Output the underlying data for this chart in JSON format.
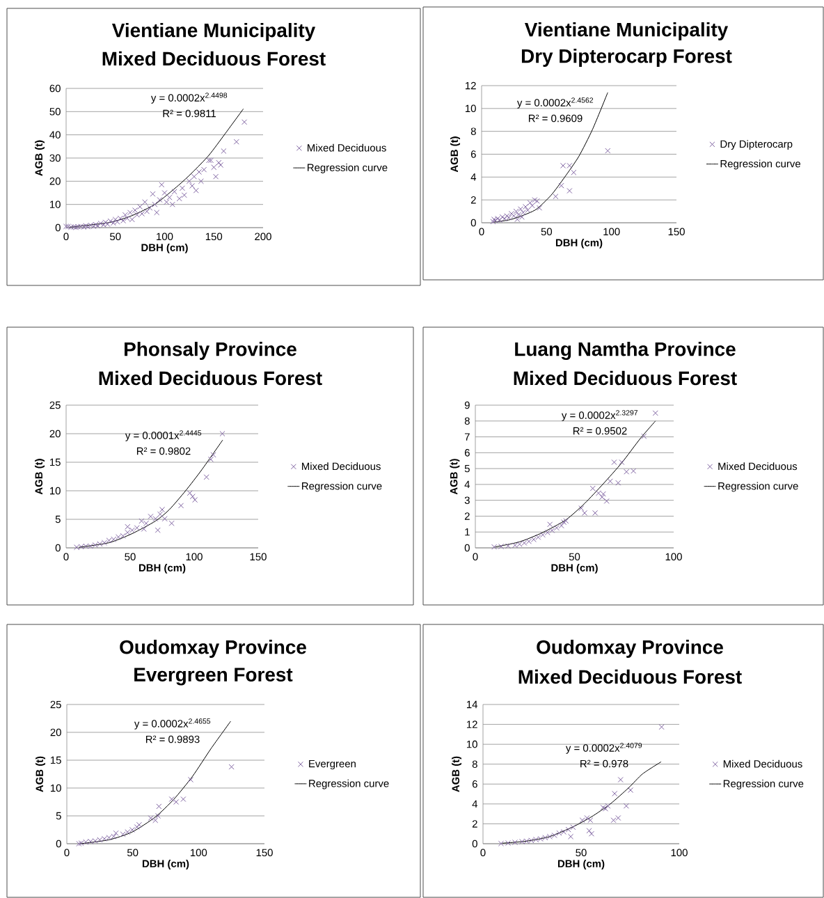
{
  "chart_data": [
    {
      "type": "scatter",
      "title": "Vientiane Municipality",
      "subtitle": "Mixed Deciduous Forest",
      "xlabel": "DBH (cm)",
      "ylabel": "AGB (t)",
      "xlim": [
        0,
        200
      ],
      "ylim": [
        0,
        60
      ],
      "xticks": [
        0,
        50,
        100,
        150,
        200
      ],
      "yticks": [
        0,
        10,
        20,
        30,
        40,
        50,
        60
      ],
      "grid": "y",
      "legend": "right",
      "annotations": [
        "y = 0.0002x$^{2.4498}$",
        "R² = 0.9811"
      ],
      "series": [
        {
          "name": "Mixed Deciduous",
          "type": "scatter",
          "marker": "cross",
          "color": "#8064a2",
          "x": [
            0,
            2,
            5,
            8,
            10,
            12,
            15,
            18,
            20,
            22,
            25,
            28,
            30,
            32,
            35,
            38,
            40,
            42,
            45,
            48,
            50,
            52,
            55,
            58,
            60,
            62,
            65,
            67,
            70,
            72,
            75,
            77,
            80,
            82,
            85,
            88,
            90,
            92,
            95,
            97,
            100,
            102,
            105,
            108,
            110,
            115,
            118,
            120,
            125,
            128,
            130,
            132,
            135,
            137,
            140,
            145,
            147,
            150,
            152,
            155,
            157,
            160,
            173,
            181
          ],
          "values": [
            0.5,
            0.5,
            0.2,
            0.3,
            0.1,
            0.4,
            0.5,
            0.3,
            0.8,
            0.4,
            1,
            0.6,
            1.3,
            0.8,
            1.8,
            1.2,
            2.3,
            1.5,
            2.8,
            2,
            3.5,
            2.5,
            4,
            3,
            5.5,
            4,
            6.5,
            3.5,
            7.5,
            5.5,
            9,
            6,
            11,
            7,
            8.5,
            14.5,
            10,
            6.5,
            12,
            18.5,
            15,
            11,
            13,
            10,
            15.5,
            12.5,
            17,
            14,
            20,
            18,
            22,
            16,
            24,
            20,
            25,
            29,
            29,
            26,
            22,
            28,
            27,
            33,
            37,
            45.5
          ]
        },
        {
          "name": "Regression curve",
          "type": "line",
          "marker": "none",
          "line_style": "solid",
          "color": "#000000",
          "x": [
            3.5,
            43.6,
            67,
            90.7,
            114,
            128,
            145,
            161,
            180
          ],
          "values": [
            0.2,
            2.2,
            5.2,
            10.2,
            18.2,
            23.7,
            31.2,
            40.2,
            51.2
          ]
        }
      ]
    },
    {
      "type": "scatter",
      "title": "Vientiane Municipality",
      "subtitle": "Dry Dipterocarp Forest",
      "xlabel": "DBH (cm)",
      "ylabel": "AGB (t)",
      "xlim": [
        0,
        150
      ],
      "ylim": [
        0,
        12
      ],
      "xticks": [
        0,
        50,
        100,
        150
      ],
      "yticks": [
        0,
        2,
        4,
        6,
        8,
        10,
        12
      ],
      "grid": "y",
      "legend": "right",
      "annotations": [
        "y = 0.0002x$^{2.4562}$",
        "R² = 0.9609"
      ],
      "series": [
        {
          "name": "Dry Dipterocarp",
          "type": "scatter",
          "marker": "cross",
          "color": "#8064a2",
          "x": [
            8.8,
            9.6,
            10.5,
            12.3,
            14,
            16,
            17.7,
            19.5,
            21,
            23,
            24.8,
            26.6,
            27.5,
            28.4,
            30,
            31,
            32,
            33.8,
            35.5,
            37.3,
            39,
            40.9,
            42.7,
            44.5,
            57,
            61.4,
            62.7,
            67.7,
            67.7,
            70.9,
            97.1
          ],
          "values": [
            0.1,
            0.3,
            0.2,
            0.35,
            0.25,
            0.5,
            0.35,
            0.6,
            0.45,
            0.8,
            0.6,
            1.0,
            0.3,
            0.7,
            1.2,
            0.5,
            0.9,
            1.4,
            1.1,
            1.75,
            1.5,
            2.0,
            1.9,
            1.3,
            2.3,
            3.25,
            5.0,
            5.0,
            2.8,
            4.4,
            6.3
          ]
        },
        {
          "name": "Regression curve",
          "type": "line",
          "marker": "none",
          "line_style": "solid",
          "color": "#000000",
          "x": [
            9.6,
            23,
            41,
            53.4,
            64,
            74.8,
            85.5,
            97.1
          ],
          "values": [
            0.06,
            0.3,
            1.1,
            2.4,
            4,
            5.8,
            8.2,
            11.4
          ]
        }
      ]
    },
    {
      "type": "scatter",
      "title": "Phonsaly Province",
      "subtitle": "Mixed Deciduous Forest",
      "xlabel": "DBH (cm)",
      "ylabel": "AGB (t)",
      "xlim": [
        0,
        150
      ],
      "ylim": [
        0,
        25
      ],
      "xticks": [
        0,
        50,
        100,
        150
      ],
      "yticks": [
        0,
        5,
        10,
        15,
        20,
        25
      ],
      "grid": "y",
      "legend": "right",
      "annotations": [
        "y = 0.0001x$^{2.4445}$",
        "R² = 0.9802"
      ],
      "series": [
        {
          "name": "Mixed Deciduous",
          "type": "scatter",
          "marker": "cross",
          "color": "#8064a2",
          "x": [
            8.2,
            11.8,
            15.4,
            19,
            22.7,
            26.3,
            29.9,
            33.5,
            37.1,
            40.8,
            44.4,
            48,
            48,
            51.6,
            55.3,
            58.9,
            60.7,
            62.5,
            66,
            69.8,
            71.6,
            73.4,
            75,
            77,
            82.4,
            89.7,
            96.6,
            98.8,
            100.6,
            109.6,
            113,
            115,
            122
          ],
          "values": [
            0.1,
            0.2,
            0.3,
            0.3,
            0.5,
            0.7,
            0.9,
            1.3,
            1.5,
            1.9,
            2.1,
            2.7,
            3.7,
            3.1,
            3.5,
            4.7,
            3.3,
            4.3,
            5.5,
            5.1,
            3.1,
            5.9,
            6.7,
            5.1,
            4.3,
            7.4,
            9.6,
            9,
            8.4,
            12.4,
            15.5,
            16.3,
            20
          ]
        },
        {
          "name": "Regression curve",
          "type": "line",
          "marker": "none",
          "line_style": "solid",
          "color": "#000000",
          "x": [
            10,
            33.5,
            51.6,
            69.8,
            80.6,
            93.3,
            106,
            122.3
          ],
          "values": [
            0.1,
            0.9,
            2.5,
            4.7,
            6.7,
            10,
            13.7,
            18.9
          ]
        }
      ]
    },
    {
      "type": "scatter",
      "title": "Luang Namtha Province",
      "subtitle": "Mixed Deciduous Forest",
      "xlabel": "DBH (cm)",
      "ylabel": "AGB (t)",
      "xlim": [
        0,
        100
      ],
      "ylim": [
        0,
        9
      ],
      "xticks": [
        0,
        50,
        100
      ],
      "yticks": [
        0,
        1,
        2,
        3,
        4,
        5,
        6,
        7,
        8,
        9
      ],
      "grid": "y",
      "legend": "right",
      "annotations": [
        "y = 0.0002x$^{2.3297}$",
        "R² = 0.9502"
      ],
      "series": [
        {
          "name": "Mixed Deciduous",
          "type": "scatter",
          "marker": "cross",
          "color": "#8064a2",
          "x": [
            9.5,
            13,
            16.5,
            20,
            22.3,
            24.7,
            27,
            29.4,
            31.7,
            34,
            36.4,
            37.6,
            38.7,
            41,
            43.4,
            44.6,
            45.7,
            53.4,
            55.1,
            59.2,
            60.4,
            62.1,
            63.9,
            64.5,
            66.2,
            68,
            70,
            72,
            73.8,
            76.2,
            79.7,
            85,
            90.8
          ],
          "values": [
            0.06,
            0.09,
            0.12,
            0.16,
            0.23,
            0.31,
            0.41,
            0.53,
            0.67,
            0.82,
            0.97,
            1.48,
            1.1,
            1.26,
            1.4,
            1.62,
            1.7,
            2.5,
            2.2,
            3.75,
            2.2,
            3.45,
            3.2,
            3.4,
            2.95,
            4.2,
            5.4,
            4.1,
            5.4,
            4.8,
            4.85,
            7.04,
            8.5
          ]
        },
        {
          "name": "Regression curve",
          "type": "line",
          "marker": "none",
          "line_style": "solid",
          "color": "#000000",
          "x": [
            10,
            22.3,
            34,
            45.7,
            55.1,
            64.5,
            73.8,
            83.2,
            90.8
          ],
          "values": [
            0.06,
            0.38,
            0.97,
            1.77,
            2.8,
            4.04,
            5.36,
            6.9,
            8.0
          ]
        }
      ]
    },
    {
      "type": "scatter",
      "title": "Oudomxay Province",
      "subtitle": "Evergreen Forest",
      "xlabel": "DBH (cm)",
      "ylabel": "AGB (t)",
      "xlim": [
        0,
        150
      ],
      "ylim": [
        0,
        25
      ],
      "xticks": [
        0,
        50,
        100,
        150
      ],
      "yticks": [
        0,
        5,
        10,
        15,
        20,
        25
      ],
      "grid": "y",
      "legend": "right",
      "annotations": [
        "y = 0.0002x$^{2.4655}$",
        "R² = 0.9893"
      ],
      "series": [
        {
          "name": "Evergreen",
          "type": "scatter",
          "marker": "cross",
          "color": "#8064a2",
          "x": [
            9.2,
            10.9,
            14.4,
            18,
            21.5,
            25,
            28.5,
            32,
            35.6,
            37.3,
            42.6,
            46.1,
            49.6,
            53.2,
            54.9,
            63.7,
            67.2,
            69.2,
            69.9,
            79.6,
            83,
            88.4,
            94,
            125
          ],
          "values": [
            0,
            0.1,
            0.3,
            0.4,
            0.5,
            0.7,
            0.9,
            1.1,
            1.3,
            1.9,
            1.7,
            2.1,
            2.5,
            3.0,
            3.4,
            4.6,
            4.2,
            5.0,
            6.7,
            8.0,
            7.5,
            8.0,
            11.5,
            13.8
          ]
        },
        {
          "name": "Regression curve",
          "type": "line",
          "marker": "none",
          "line_style": "solid",
          "color": "#000000",
          "x": [
            10,
            32,
            49.6,
            67.2,
            81.3,
            95.4,
            109.5,
            124.4
          ],
          "values": [
            0,
            0.7,
            2.1,
            4.8,
            8.0,
            12.1,
            17.1,
            22.0
          ]
        }
      ]
    },
    {
      "type": "scatter",
      "title": "Oudomxay Province",
      "subtitle": "Mixed Deciduous Forest",
      "xlabel": "DBH (cm)",
      "ylabel": "AGB (t)",
      "xlim": [
        0,
        100
      ],
      "ylim": [
        0,
        14
      ],
      "xticks": [
        0,
        50,
        100
      ],
      "yticks": [
        0,
        2,
        4,
        6,
        8,
        10,
        12,
        14
      ],
      "grid": "y",
      "legend": "right",
      "annotations": [
        "y = 0.0002x$^{2.4079}$",
        "R² = 0.978"
      ],
      "series": [
        {
          "name": "Mixed Deciduous",
          "type": "scatter",
          "marker": "cross",
          "color": "#8064a2",
          "x": [
            9.2,
            12.8,
            16.3,
            19.9,
            22.2,
            24.6,
            27,
            29.3,
            31.7,
            34,
            36.4,
            38.8,
            41.1,
            43.5,
            44.7,
            45.9,
            50.6,
            53,
            54.1,
            54.7,
            55.3,
            61.2,
            62.4,
            63.6,
            66.5,
            67.1,
            68.9,
            70.1,
            73,
            75.2,
            91
          ],
          "values": [
            0.02,
            0.07,
            0.14,
            0.21,
            0.26,
            0.33,
            0.42,
            0.49,
            0.61,
            0.72,
            0.84,
            1.07,
            1.19,
            1.42,
            0.72,
            1.66,
            2.36,
            2.59,
            1.31,
            2.36,
            1.0,
            3.64,
            3.52,
            3.8,
            2.36,
            5.04,
            2.59,
            6.44,
            3.8,
            5.39,
            11.74
          ]
        },
        {
          "name": "Regression curve",
          "type": "line",
          "marker": "none",
          "line_style": "solid",
          "color": "#000000",
          "x": [
            9.8,
            22.2,
            34,
            45.9,
            55.3,
            64.8,
            74.2,
            81.3,
            90.8
          ],
          "values": [
            0.05,
            0.26,
            0.72,
            1.7,
            2.71,
            3.99,
            5.62,
            7.02,
            8.24
          ]
        }
      ]
    }
  ]
}
